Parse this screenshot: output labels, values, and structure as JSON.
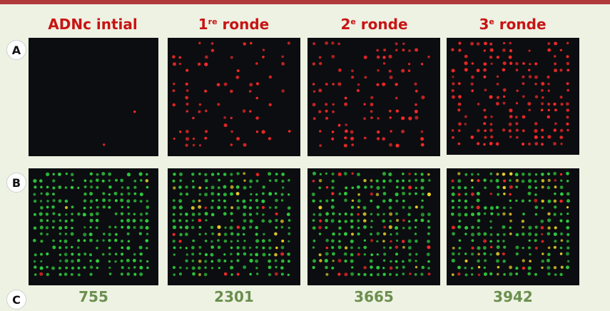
{
  "columns": [
    {
      "title": "ADNc intial",
      "sup": "",
      "suffix": "",
      "count": "755",
      "red_density": 0.01,
      "yellow_density": 0.01
    },
    {
      "title": "1",
      "sup": "re",
      "suffix": " ronde",
      "count": "2301",
      "red_density": 0.22,
      "yellow_density": 0.07
    },
    {
      "title": "2",
      "sup": "e",
      "suffix": " ronde",
      "count": "3665",
      "red_density": 0.35,
      "yellow_density": 0.12
    },
    {
      "title": "3",
      "sup": "e",
      "suffix": " ronde",
      "count": "3942",
      "red_density": 0.45,
      "yellow_density": 0.16
    }
  ],
  "rows": {
    "a": "A",
    "b": "B",
    "c": "C"
  },
  "colors": {
    "background": "#eef2e3",
    "topbar": "#b03a3a",
    "header_text": "#c81414",
    "count_text": "#6b8f4e",
    "panel": "#0c0d10",
    "spot_red": "#ff2a2a",
    "spot_green": "#2fcf3f",
    "spot_yellow": "#e8d02a"
  }
}
